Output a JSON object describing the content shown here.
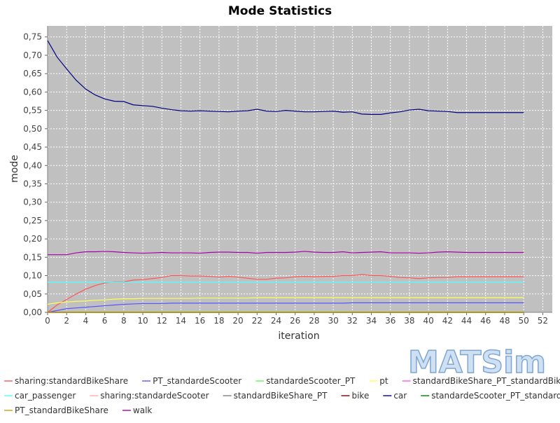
{
  "chart_data": {
    "type": "line",
    "title": "Mode Statistics",
    "xlabel": "iteration",
    "ylabel": "mode",
    "xlim": [
      0,
      53
    ],
    "ylim": [
      0,
      0.78
    ],
    "x_ticks": [
      "0",
      "2",
      "4",
      "6",
      "8",
      "10",
      "12",
      "14",
      "16",
      "18",
      "20",
      "22",
      "24",
      "26",
      "28",
      "30",
      "32",
      "34",
      "36",
      "38",
      "40",
      "42",
      "44",
      "46",
      "48",
      "50",
      "52"
    ],
    "y_ticks": [
      "0,00",
      "0,05",
      "0,10",
      "0,15",
      "0,20",
      "0,25",
      "0,30",
      "0,35",
      "0,40",
      "0,45",
      "0,50",
      "0,55",
      "0,60",
      "0,65",
      "0,70",
      "0,75"
    ],
    "grid": true,
    "legend_position": "bottom",
    "logo": "MATSim",
    "x": [
      0,
      1,
      2,
      3,
      4,
      5,
      6,
      7,
      8,
      9,
      10,
      11,
      12,
      13,
      14,
      15,
      16,
      17,
      18,
      19,
      20,
      21,
      22,
      23,
      24,
      25,
      26,
      27,
      28,
      29,
      30,
      31,
      32,
      33,
      34,
      35,
      36,
      37,
      38,
      39,
      40,
      41,
      42,
      43,
      44,
      45,
      46,
      47,
      48,
      49,
      50
    ],
    "series": [
      {
        "name": "sharing:standardBikeShare",
        "color": "#ff5555",
        "values": [
          0.0,
          0.02,
          0.035,
          0.05,
          0.063,
          0.073,
          0.08,
          0.083,
          0.083,
          0.088,
          0.089,
          0.092,
          0.095,
          0.1,
          0.1,
          0.099,
          0.099,
          0.098,
          0.096,
          0.098,
          0.096,
          0.093,
          0.09,
          0.09,
          0.093,
          0.094,
          0.097,
          0.098,
          0.097,
          0.098,
          0.098,
          0.1,
          0.1,
          0.103,
          0.1,
          0.1,
          0.098,
          0.095,
          0.094,
          0.092,
          0.094,
          0.095,
          0.095,
          0.097,
          0.097,
          0.097,
          0.097,
          0.097,
          0.097,
          0.097,
          0.097
        ]
      },
      {
        "name": "PT_standardeScooter",
        "color": "#5555ff",
        "values": [
          0.0,
          0.005,
          0.01,
          0.012,
          0.014,
          0.016,
          0.018,
          0.02,
          0.022,
          0.023,
          0.024,
          0.024,
          0.024,
          0.025,
          0.025,
          0.025,
          0.025,
          0.025,
          0.025,
          0.025,
          0.025,
          0.025,
          0.025,
          0.025,
          0.025,
          0.025,
          0.025,
          0.025,
          0.025,
          0.025,
          0.025,
          0.025,
          0.026,
          0.026,
          0.026,
          0.026,
          0.026,
          0.026,
          0.026,
          0.026,
          0.026,
          0.026,
          0.026,
          0.026,
          0.026,
          0.026,
          0.026,
          0.026,
          0.026,
          0.026,
          0.026
        ]
      },
      {
        "name": "standardeScooter_PT",
        "color": "#55ff55",
        "values": [
          0.0,
          0.0,
          0.0,
          0.001,
          0.001,
          0.001,
          0.001,
          0.001,
          0.001,
          0.001,
          0.001,
          0.001,
          0.001,
          0.001,
          0.001,
          0.001,
          0.001,
          0.001,
          0.001,
          0.001,
          0.001,
          0.001,
          0.001,
          0.001,
          0.001,
          0.001,
          0.001,
          0.001,
          0.001,
          0.001,
          0.001,
          0.001,
          0.001,
          0.001,
          0.001,
          0.001,
          0.001,
          0.001,
          0.001,
          0.001,
          0.001,
          0.001,
          0.001,
          0.001,
          0.001,
          0.001,
          0.001,
          0.001,
          0.001,
          0.001,
          0.001
        ]
      },
      {
        "name": "pt",
        "color": "#ffff55",
        "values": [
          0.022,
          0.026,
          0.028,
          0.03,
          0.031,
          0.033,
          0.034,
          0.036,
          0.037,
          0.037,
          0.038,
          0.038,
          0.038,
          0.038,
          0.038,
          0.038,
          0.039,
          0.039,
          0.039,
          0.039,
          0.039,
          0.039,
          0.04,
          0.04,
          0.04,
          0.04,
          0.04,
          0.04,
          0.04,
          0.04,
          0.04,
          0.04,
          0.04,
          0.04,
          0.04,
          0.04,
          0.04,
          0.04,
          0.04,
          0.04,
          0.04,
          0.04,
          0.04,
          0.04,
          0.04,
          0.04,
          0.04,
          0.04,
          0.04,
          0.04,
          0.04
        ]
      },
      {
        "name": "standardBikeShare_PT_standardBikeShare",
        "color": "#ff55ff",
        "values": [
          0.0,
          0.0,
          0.0,
          0.0,
          0.0,
          0.0,
          0.0,
          0.0,
          0.0,
          0.0,
          0.0,
          0.0,
          0.0,
          0.0,
          0.0,
          0.0,
          0.0,
          0.0,
          0.0,
          0.0,
          0.0,
          0.0,
          0.0,
          0.0,
          0.0,
          0.0,
          0.0,
          0.0,
          0.0,
          0.0,
          0.0,
          0.0,
          0.0,
          0.0,
          0.0,
          0.0,
          0.0,
          0.0,
          0.0,
          0.0,
          0.0,
          0.0,
          0.0,
          0.0,
          0.0,
          0.0,
          0.0,
          0.0,
          0.0,
          0.0,
          0.0
        ]
      },
      {
        "name": "car_passenger",
        "color": "#55ffff",
        "values": [
          0.082,
          0.082,
          0.082,
          0.082,
          0.082,
          0.082,
          0.082,
          0.082,
          0.082,
          0.082,
          0.082,
          0.082,
          0.082,
          0.082,
          0.082,
          0.082,
          0.082,
          0.082,
          0.082,
          0.082,
          0.082,
          0.082,
          0.082,
          0.082,
          0.082,
          0.082,
          0.082,
          0.082,
          0.082,
          0.082,
          0.082,
          0.082,
          0.082,
          0.082,
          0.082,
          0.082,
          0.082,
          0.082,
          0.082,
          0.082,
          0.082,
          0.082,
          0.082,
          0.082,
          0.082,
          0.082,
          0.082,
          0.082,
          0.082,
          0.082,
          0.082
        ]
      },
      {
        "name": "sharing:standardeScooter",
        "color": "#ffaaaa",
        "values": [
          0.0,
          0.0,
          0.0,
          0.0,
          0.0,
          0.0,
          0.0,
          0.0,
          0.0,
          0.0,
          0.0,
          0.0,
          0.0,
          0.0,
          0.0,
          0.0,
          0.0,
          0.0,
          0.0,
          0.0,
          0.0,
          0.0,
          0.0,
          0.0,
          0.0,
          0.0,
          0.0,
          0.0,
          0.0,
          0.0,
          0.0,
          0.0,
          0.0,
          0.0,
          0.0,
          0.0,
          0.0,
          0.0,
          0.0,
          0.0,
          0.0,
          0.0,
          0.0,
          0.0,
          0.0,
          0.0,
          0.0,
          0.0,
          0.0,
          0.0,
          0.0
        ]
      },
      {
        "name": "standardBikeShare_PT",
        "color": "#808080",
        "values": [
          0.0,
          0.0,
          0.0,
          0.0,
          0.0,
          0.0,
          0.0,
          0.0,
          0.0,
          0.0,
          0.0,
          0.0,
          0.0,
          0.0,
          0.0,
          0.0,
          0.0,
          0.0,
          0.0,
          0.0,
          0.0,
          0.0,
          0.0,
          0.0,
          0.0,
          0.0,
          0.0,
          0.0,
          0.0,
          0.0,
          0.0,
          0.0,
          0.0,
          0.0,
          0.0,
          0.0,
          0.0,
          0.0,
          0.0,
          0.0,
          0.0,
          0.0,
          0.0,
          0.0,
          0.0,
          0.0,
          0.0,
          0.0,
          0.0,
          0.0,
          0.0
        ]
      },
      {
        "name": "bike",
        "color": "#800000",
        "values": [
          0.0,
          0.0,
          0.0,
          0.0,
          0.0,
          0.0,
          0.0,
          0.0,
          0.0,
          0.0,
          0.0,
          0.0,
          0.0,
          0.0,
          0.0,
          0.0,
          0.0,
          0.0,
          0.0,
          0.0,
          0.0,
          0.0,
          0.0,
          0.0,
          0.0,
          0.0,
          0.0,
          0.0,
          0.0,
          0.0,
          0.0,
          0.0,
          0.0,
          0.0,
          0.0,
          0.0,
          0.0,
          0.0,
          0.0,
          0.0,
          0.0,
          0.0,
          0.0,
          0.0,
          0.0,
          0.0,
          0.0,
          0.0,
          0.0,
          0.0,
          0.0
        ]
      },
      {
        "name": "car",
        "color": "#000080",
        "values": [
          0.74,
          0.695,
          0.663,
          0.632,
          0.608,
          0.592,
          0.581,
          0.575,
          0.574,
          0.565,
          0.563,
          0.561,
          0.556,
          0.552,
          0.549,
          0.548,
          0.549,
          0.548,
          0.547,
          0.546,
          0.548,
          0.549,
          0.553,
          0.548,
          0.547,
          0.55,
          0.548,
          0.546,
          0.546,
          0.547,
          0.548,
          0.545,
          0.546,
          0.54,
          0.539,
          0.539,
          0.543,
          0.546,
          0.551,
          0.553,
          0.549,
          0.548,
          0.547,
          0.544,
          0.544,
          0.544,
          0.544,
          0.544,
          0.544,
          0.544,
          0.544
        ]
      },
      {
        "name": "standardeScooter_PT_standardeScooter",
        "color": "#008000",
        "values": [
          0.0,
          0.0,
          0.0,
          0.0,
          0.0,
          0.0,
          0.0,
          0.0,
          0.0,
          0.0,
          0.0,
          0.0,
          0.0,
          0.0,
          0.0,
          0.0,
          0.0,
          0.0,
          0.0,
          0.0,
          0.0,
          0.0,
          0.0,
          0.0,
          0.0,
          0.0,
          0.0,
          0.0,
          0.0,
          0.0,
          0.0,
          0.0,
          0.0,
          0.0,
          0.0,
          0.0,
          0.0,
          0.0,
          0.0,
          0.0,
          0.0,
          0.0,
          0.0,
          0.0,
          0.0,
          0.0,
          0.0,
          0.0,
          0.0,
          0.0,
          0.0
        ]
      },
      {
        "name": "PT_standardBikeShare",
        "color": "#d4a000",
        "values": [
          0.0,
          0.0,
          0.0,
          0.0,
          0.0,
          0.0,
          0.0,
          0.0,
          0.0,
          0.0,
          0.0,
          0.0,
          0.0,
          0.0,
          0.0,
          0.0,
          0.0,
          0.0,
          0.0,
          0.0,
          0.0,
          0.0,
          0.0,
          0.0,
          0.0,
          0.0,
          0.0,
          0.0,
          0.0,
          0.0,
          0.0,
          0.0,
          0.0,
          0.0,
          0.0,
          0.0,
          0.0,
          0.0,
          0.0,
          0.0,
          0.0,
          0.0,
          0.0,
          0.0,
          0.0,
          0.0,
          0.0,
          0.0,
          0.0,
          0.0,
          0.0
        ]
      },
      {
        "name": "walk",
        "color": "#aa00aa",
        "values": [
          0.157,
          0.157,
          0.157,
          0.162,
          0.165,
          0.165,
          0.166,
          0.165,
          0.163,
          0.162,
          0.161,
          0.162,
          0.163,
          0.162,
          0.162,
          0.162,
          0.161,
          0.163,
          0.164,
          0.164,
          0.163,
          0.163,
          0.161,
          0.163,
          0.163,
          0.163,
          0.164,
          0.166,
          0.164,
          0.163,
          0.163,
          0.165,
          0.162,
          0.163,
          0.164,
          0.165,
          0.162,
          0.162,
          0.162,
          0.161,
          0.162,
          0.164,
          0.165,
          0.164,
          0.163,
          0.163,
          0.163,
          0.163,
          0.163,
          0.163,
          0.163
        ]
      }
    ]
  }
}
